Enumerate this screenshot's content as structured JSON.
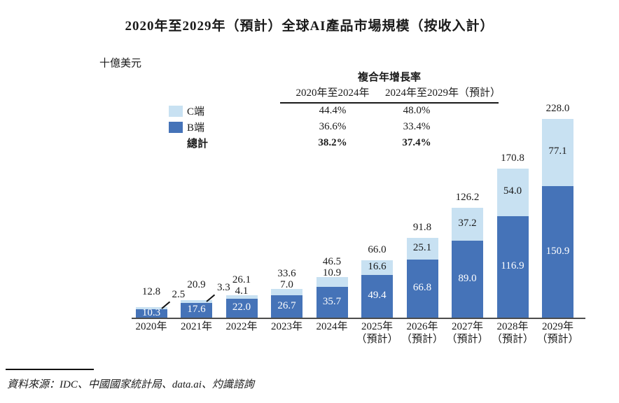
{
  "source": "資料來源：IDC、中國國家統計局、data.ai、灼識諮詢",
  "chart_data": {
    "type": "bar",
    "stacked": true,
    "title": "2020年至2029年（預計）全球AI產品市場規模（按收入計）",
    "unit_label": "十億美元",
    "categories": [
      "2020年",
      "2021年",
      "2022年",
      "2023年",
      "2024年",
      "2025年",
      "2026年",
      "2027年",
      "2028年",
      "2029年"
    ],
    "forecast_suffix": "（預計）",
    "forecast_start_index": 5,
    "series": [
      {
        "name": "B端",
        "color": "#4573b8",
        "values": [
          10.3,
          17.6,
          22.0,
          26.7,
          35.7,
          49.4,
          66.8,
          89.0,
          116.9,
          150.9
        ]
      },
      {
        "name": "C端",
        "color": "#c8e1f2",
        "values": [
          2.5,
          3.3,
          4.1,
          7.0,
          10.9,
          16.6,
          25.1,
          37.2,
          54.0,
          77.1
        ]
      }
    ],
    "totals": [
      12.8,
      20.9,
      26.1,
      33.6,
      46.5,
      66.0,
      91.8,
      126.2,
      170.8,
      228.0
    ],
    "c_label_modes": [
      "callout",
      "callout",
      "above",
      "above",
      "above",
      "inside",
      "inside",
      "inside",
      "inside",
      "inside"
    ],
    "axis_color": "#4c4c4c",
    "ylim": [
      0,
      240
    ],
    "legend_position": "top-left",
    "grid": false,
    "cagr_table": {
      "title": "複合年增長率",
      "columns": [
        "2020年至2024年",
        "2024年至2029年（預計）"
      ],
      "rows": [
        {
          "label": "C端",
          "color": "#c8e1f2",
          "values": [
            "44.4%",
            "48.0%"
          ],
          "bold": false
        },
        {
          "label": "B端",
          "color": "#4573b8",
          "values": [
            "36.6%",
            "33.4%"
          ],
          "bold": false
        },
        {
          "label": "總計",
          "color": null,
          "values": [
            "38.2%",
            "37.4%"
          ],
          "bold": true
        }
      ]
    }
  }
}
